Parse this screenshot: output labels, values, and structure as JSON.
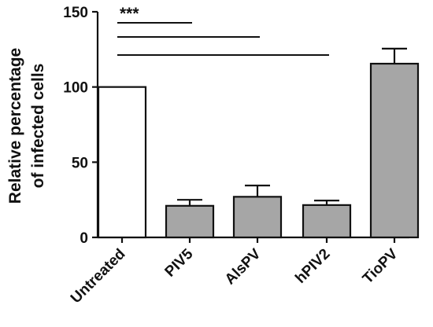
{
  "chart_data": {
    "type": "bar",
    "title": "",
    "xlabel": "",
    "ylabel": "Relative percentage\nof infected cells",
    "ylim": [
      0,
      150
    ],
    "yticks": [
      0,
      50,
      100,
      150
    ],
    "grid": false,
    "categories": [
      "Untreated",
      "PIV5",
      "AlsPV",
      "hPIV2",
      "TioPV"
    ],
    "values": [
      100,
      21,
      27,
      21.5,
      115.5
    ],
    "errors": [
      0,
      4,
      7.5,
      3,
      10
    ],
    "bar_colors": [
      "#ffffff",
      "#a6a6a6",
      "#a6a6a6",
      "#a6a6a6",
      "#a6a6a6"
    ],
    "significance": {
      "label": "***",
      "comparisons": [
        {
          "from": "Untreated",
          "to": "PIV5"
        },
        {
          "from": "Untreated",
          "to": "AlsPV"
        },
        {
          "from": "Untreated",
          "to": "hPIV2"
        }
      ]
    }
  }
}
